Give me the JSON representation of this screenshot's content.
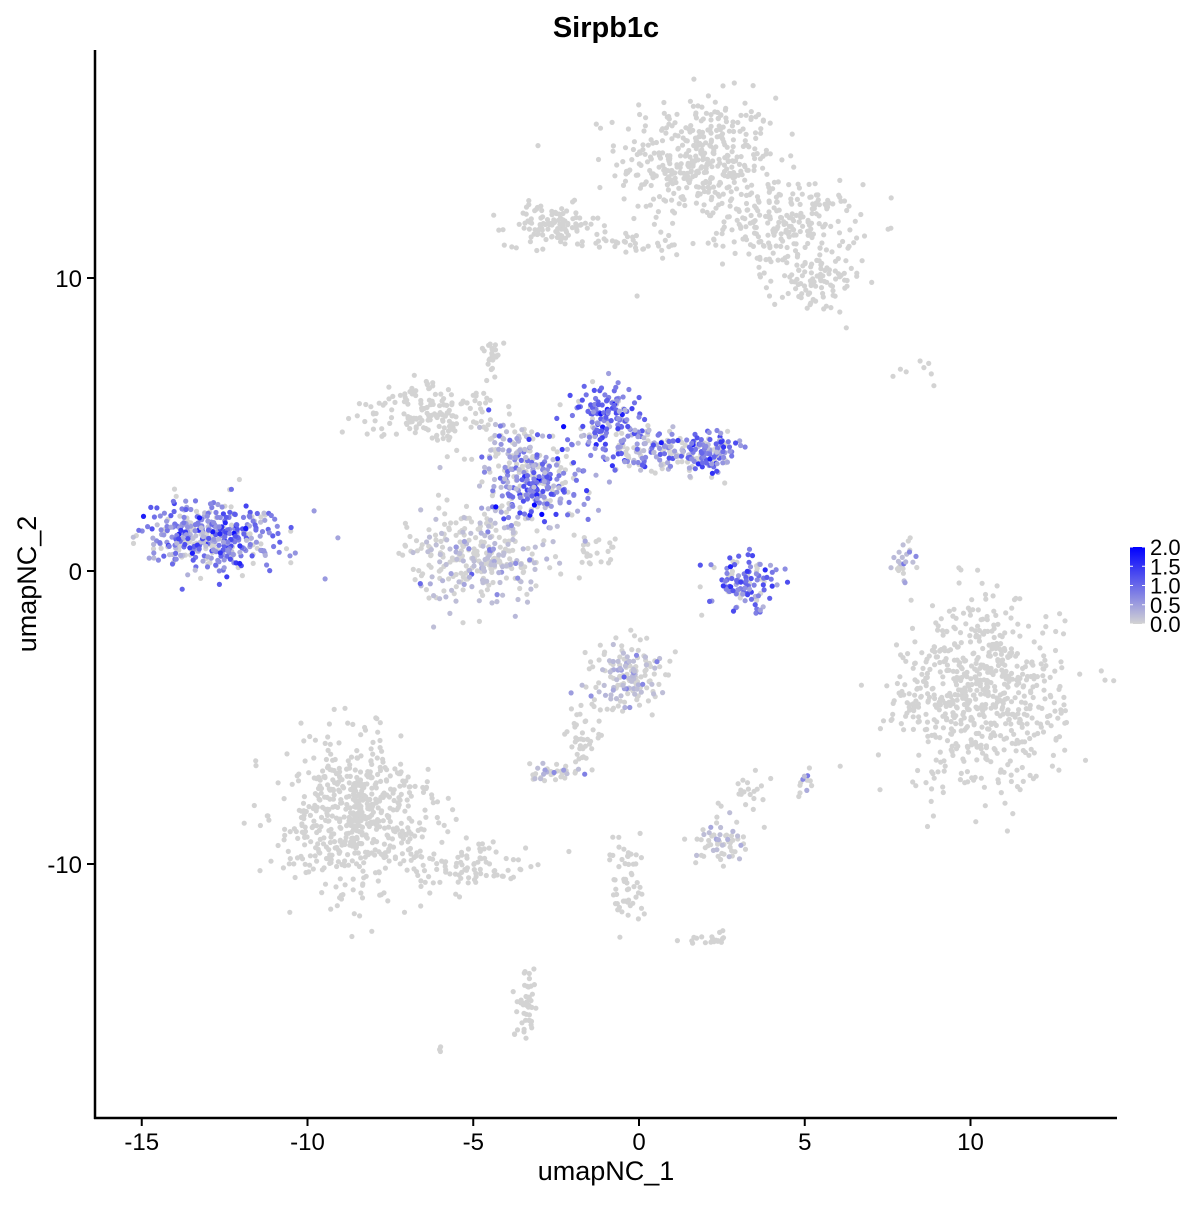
{
  "chart_data": {
    "type": "scatter",
    "title": "Sirpb1c",
    "xlabel": "umapNC_1",
    "ylabel": "umapNC_2",
    "xlim": [
      -16.5,
      14.5
    ],
    "ylim": [
      -18.2,
      17.8
    ],
    "x_ticks": [
      -15,
      -10,
      -5,
      0,
      5,
      10
    ],
    "y_ticks": [
      -10,
      0,
      10
    ],
    "x_tick_labels": [
      "-15",
      "-10",
      "-5",
      "0",
      "5",
      "10"
    ],
    "y_tick_labels": [
      "-10",
      "0",
      "10"
    ],
    "grid": false,
    "legend": {
      "position": "right",
      "type": "colorbar",
      "range": [
        0,
        2.0
      ],
      "ticks": [
        "2.0",
        "1.5",
        "1.0",
        "0.5",
        "0.0"
      ],
      "low_color": "#d3d3d3",
      "high_color": "#0000ff"
    },
    "clusters": [
      {
        "cx": 1.8,
        "cy": 14.0,
        "sx": 1.2,
        "sy": 1.1,
        "n": 420,
        "expr": 0.0
      },
      {
        "cx": 4.6,
        "cy": 11.8,
        "sx": 1.0,
        "sy": 0.7,
        "n": 220,
        "expr": 0.0
      },
      {
        "cx": 5.3,
        "cy": 9.8,
        "sx": 0.7,
        "sy": 0.5,
        "n": 90,
        "expr": 0.0
      },
      {
        "cx": -2.6,
        "cy": 11.8,
        "sx": 0.7,
        "sy": 0.35,
        "n": 110,
        "expr": 0.0
      },
      {
        "cx": -0.4,
        "cy": 11.2,
        "sx": 1.2,
        "sy": 0.2,
        "n": 40,
        "expr": 0.0
      },
      {
        "cx": -12.9,
        "cy": 1.2,
        "sx": 1.0,
        "sy": 0.6,
        "n": 420,
        "expr": 0.8
      },
      {
        "cx": -6.3,
        "cy": 5.4,
        "sx": 1.0,
        "sy": 0.5,
        "n": 160,
        "expr": 0.0
      },
      {
        "cx": -4.9,
        "cy": 0.6,
        "sx": 1.0,
        "sy": 0.8,
        "n": 320,
        "expr": 0.05
      },
      {
        "cx": -3.0,
        "cy": 3.0,
        "sx": 0.7,
        "sy": 0.7,
        "n": 220,
        "expr": 0.8
      },
      {
        "cx": -1.0,
        "cy": 5.2,
        "sx": 0.5,
        "sy": 0.6,
        "n": 140,
        "expr": 1.0
      },
      {
        "cx": 0.2,
        "cy": 4.1,
        "sx": 0.9,
        "sy": 0.35,
        "n": 140,
        "expr": 0.6
      },
      {
        "cx": 2.0,
        "cy": 4.0,
        "sx": 0.5,
        "sy": 0.4,
        "n": 120,
        "expr": 0.9
      },
      {
        "cx": -4.0,
        "cy": 4.0,
        "sx": 0.6,
        "sy": 0.5,
        "n": 100,
        "expr": 0.3
      },
      {
        "cx": 3.2,
        "cy": -0.4,
        "sx": 0.55,
        "sy": 0.45,
        "n": 110,
        "expr": 0.9
      },
      {
        "cx": -4.4,
        "cy": 7.3,
        "sx": 0.15,
        "sy": 0.3,
        "n": 25,
        "expr": 0.0
      },
      {
        "cx": 10.4,
        "cy": -4.3,
        "sx": 1.2,
        "sy": 1.6,
        "n": 650,
        "expr": 0.0
      },
      {
        "cx": 8.2,
        "cy": -4.4,
        "sx": 0.2,
        "sy": 0.4,
        "n": 30,
        "expr": 0.0
      },
      {
        "cx": 8.0,
        "cy": 0.4,
        "sx": 0.2,
        "sy": 0.4,
        "n": 25,
        "expr": 0.05
      },
      {
        "cx": -8.5,
        "cy": -8.3,
        "sx": 1.1,
        "sy": 1.3,
        "n": 600,
        "expr": 0.0
      },
      {
        "cx": -5.2,
        "cy": -10.0,
        "sx": 1.1,
        "sy": 0.4,
        "n": 90,
        "expr": 0.0
      },
      {
        "cx": -0.3,
        "cy": -3.6,
        "sx": 0.6,
        "sy": 0.6,
        "n": 160,
        "expr": 0.02
      },
      {
        "cx": -1.8,
        "cy": -5.6,
        "sx": 0.3,
        "sy": 0.6,
        "n": 40,
        "expr": 0.0
      },
      {
        "cx": -2.6,
        "cy": -6.9,
        "sx": 0.4,
        "sy": 0.15,
        "n": 35,
        "expr": 0.05
      },
      {
        "cx": 2.4,
        "cy": -9.2,
        "sx": 0.4,
        "sy": 0.4,
        "n": 60,
        "expr": 0.02
      },
      {
        "cx": 3.3,
        "cy": -7.6,
        "sx": 0.3,
        "sy": 0.5,
        "n": 20,
        "expr": 0.0
      },
      {
        "cx": -0.3,
        "cy": -10.8,
        "sx": 0.3,
        "sy": 0.8,
        "n": 55,
        "expr": 0.0
      },
      {
        "cx": 2.1,
        "cy": -12.6,
        "sx": 0.3,
        "sy": 0.15,
        "n": 20,
        "expr": 0.0
      },
      {
        "cx": -3.4,
        "cy": -14.8,
        "sx": 0.2,
        "sy": 0.7,
        "n": 45,
        "expr": 0.0
      },
      {
        "cx": 5.0,
        "cy": -7.2,
        "sx": 0.15,
        "sy": 0.2,
        "n": 12,
        "expr": 0.3
      },
      {
        "cx": -1.4,
        "cy": 0.6,
        "sx": 0.4,
        "sy": 0.3,
        "n": 25,
        "expr": 0.0
      },
      {
        "cx": 8.4,
        "cy": 6.8,
        "sx": 0.4,
        "sy": 0.3,
        "n": 8,
        "expr": 0.0
      },
      {
        "cx": -6.0,
        "cy": -16.3,
        "sx": 0.05,
        "sy": 0.05,
        "n": 3,
        "expr": 0.0
      }
    ]
  }
}
